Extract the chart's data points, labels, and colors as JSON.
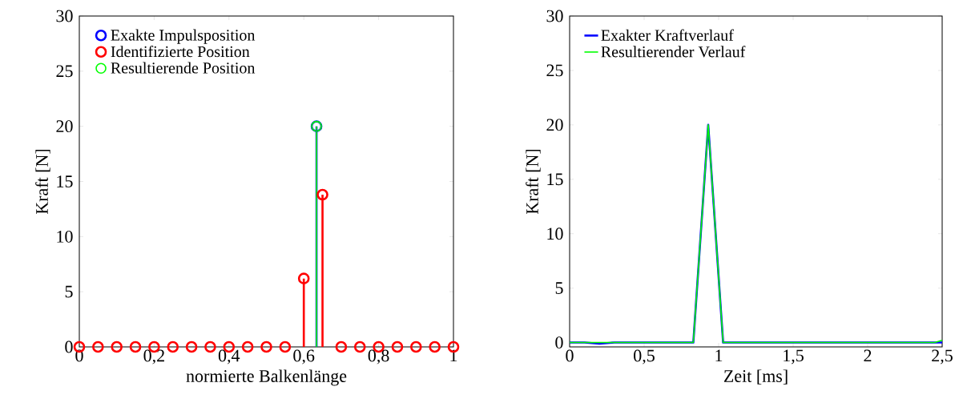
{
  "chart_data": [
    {
      "type": "lollipop",
      "xlabel": "normierte Balkenlänge",
      "ylabel": "Kraft [N]",
      "xlim": [
        0,
        1
      ],
      "ylim": [
        0,
        30
      ],
      "xticks": [
        0,
        {
          "value": 0.2,
          "label": "0,2"
        },
        {
          "value": 0.4,
          "label": "0,4"
        },
        {
          "value": 0.6,
          "label": "0,6"
        },
        {
          "value": 0.8,
          "label": "0,8"
        },
        1
      ],
      "yticks": [
        0,
        5,
        10,
        15,
        20,
        25,
        30
      ],
      "legend": "top left",
      "marker": "circle",
      "grid": false,
      "series": [
        {
          "name": "Exakte Impulsposition",
          "color": "#0000ff",
          "x": [
            0.634
          ],
          "values": [
            20
          ]
        },
        {
          "name": "Identifizierte Position",
          "color": "#ff0000",
          "x": [
            0,
            0.05,
            0.1,
            0.15,
            0.2,
            0.25,
            0.3,
            0.35,
            0.4,
            0.45,
            0.5,
            0.55,
            0.6,
            0.65,
            0.7,
            0.75,
            0.8,
            0.85,
            0.9,
            0.95,
            1
          ],
          "values": [
            0,
            0,
            0,
            0,
            0,
            0,
            0,
            0,
            0,
            0,
            0,
            0,
            6.2,
            13.8,
            0,
            0,
            0,
            0,
            0,
            0,
            0
          ]
        },
        {
          "name": "Resultierende Position",
          "color": "#00ff00",
          "x": [
            0.634
          ],
          "values": [
            20
          ]
        }
      ]
    },
    {
      "type": "line",
      "xlabel": "Zeit [ms]",
      "ylabel": "Kraft [N]",
      "xlim": [
        0,
        2.5
      ],
      "ylim": [
        -0.4,
        30
      ],
      "xticks": [
        0,
        {
          "value": 0.5,
          "label": "0,5"
        },
        1,
        {
          "value": 1.5,
          "label": "1,5"
        },
        2,
        {
          "value": 2.5,
          "label": "2,5"
        }
      ],
      "yticks": [
        0,
        5,
        10,
        15,
        20,
        25,
        30
      ],
      "legend": "top left",
      "marker": "none",
      "grid": false,
      "series": [
        {
          "name": "Exakter Kraftverlauf",
          "color": "#0000ff",
          "x": [
            0,
            0.1,
            0.2,
            0.3,
            0.83,
            0.93,
            1.03,
            2.5
          ],
          "values": [
            0,
            0,
            -0.1,
            0,
            0,
            20,
            0,
            0
          ]
        },
        {
          "name": "Resultierender Verlauf",
          "color": "#00ff00",
          "x": [
            0,
            0.83,
            0.93,
            1.03,
            2.45,
            2.5
          ],
          "values": [
            0,
            0,
            20,
            0,
            0,
            0.2
          ]
        }
      ]
    }
  ]
}
